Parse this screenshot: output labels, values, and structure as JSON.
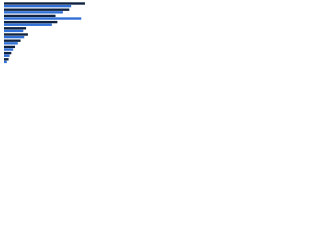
{
  "chart_data": {
    "type": "hbar",
    "categories": [
      null,
      null,
      null,
      null,
      null,
      null,
      null,
      null,
      null,
      null
    ],
    "series": [
      {
        "color": "#0f2340",
        "values": [
          88,
          71,
          56,
          58,
          24,
          26,
          18,
          12,
          8,
          5
        ]
      },
      {
        "color": "#2f6fd6",
        "values": [
          73,
          64,
          84,
          52,
          21,
          22,
          15,
          10,
          6,
          3
        ]
      }
    ],
    "xlim": [
      0,
      100
    ]
  }
}
